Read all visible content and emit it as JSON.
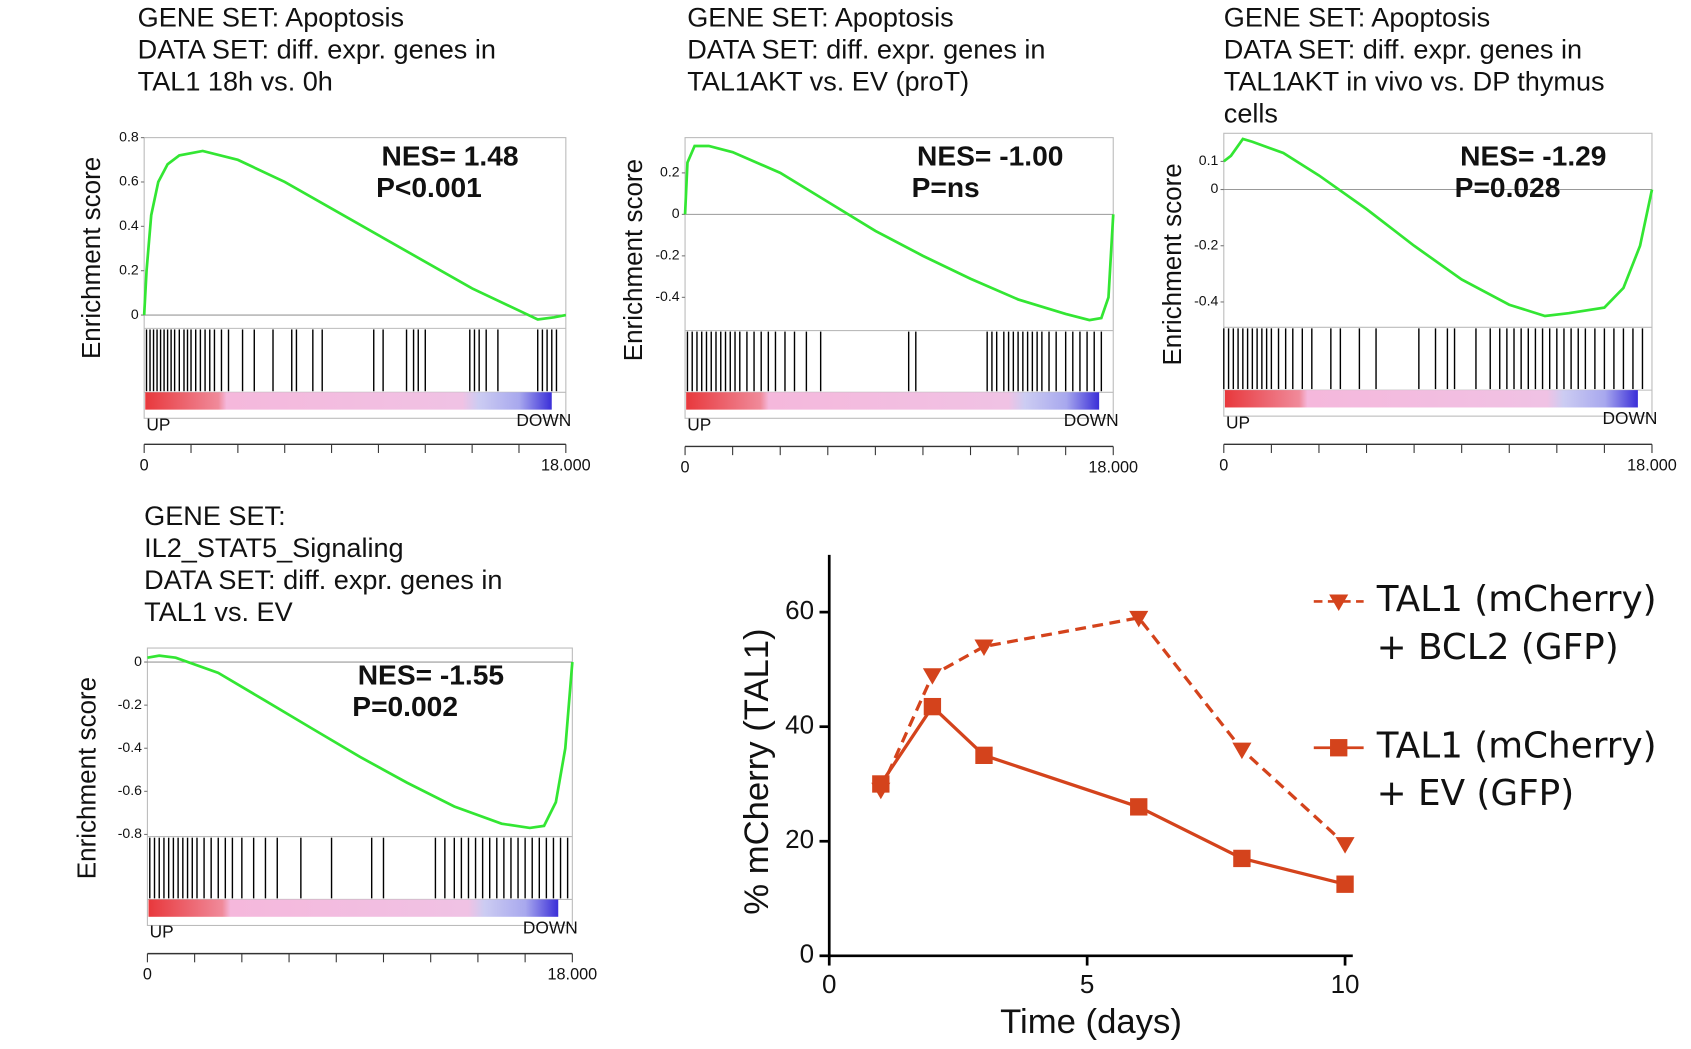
{
  "chart_data": [
    {
      "type": "gsea",
      "title": [
        "GENE SET: Apoptosis",
        "DATA SET: diff. expr. genes in",
        "TAL1 18h vs. 0h"
      ],
      "ylabel": "Enrichment score",
      "annotations": [
        "NES= 1.48",
        "P<0.001"
      ],
      "start_label": "UP",
      "end_label": "DOWN",
      "ylim": [
        -0.06,
        0.8
      ],
      "yticks": [
        0,
        0.2,
        0.4,
        0.6,
        0.8
      ],
      "xlim": [
        0,
        18000
      ],
      "xticks": [
        0,
        {
          "value": 18000,
          "label": "18.000"
        }
      ],
      "xminor_ticks": [
        2000,
        4000,
        6000,
        8000,
        10000,
        12000,
        14000,
        16000
      ],
      "color": "#33e633",
      "x": [
        0,
        100,
        300,
        600,
        1000,
        1500,
        2500,
        4000,
        6000,
        8000,
        10000,
        12000,
        14000,
        16000,
        16800,
        17500,
        18000
      ],
      "values": [
        0,
        0.2,
        0.45,
        0.6,
        0.68,
        0.72,
        0.74,
        0.7,
        0.6,
        0.48,
        0.36,
        0.24,
        0.12,
        0.02,
        -0.02,
        -0.01,
        0
      ],
      "hits": [
        100,
        250,
        400,
        550,
        700,
        850,
        1000,
        1150,
        1300,
        1500,
        1700,
        1850,
        2000,
        2200,
        2400,
        2600,
        2800,
        3000,
        3300,
        3600,
        4200,
        4700,
        5500,
        6300,
        6500,
        7200,
        7600,
        9800,
        10200,
        11200,
        11500,
        11700,
        12000,
        13900,
        14100,
        14300,
        14600,
        15100,
        16800,
        17000,
        17200,
        17400,
        17600
      ]
    },
    {
      "type": "gsea",
      "title": [
        "GENE SET: Apoptosis",
        "DATA SET: diff. expr. genes in",
        "TAL1AKT vs. EV (proT)"
      ],
      "ylabel": "Enrichment score",
      "annotations": [
        "NES= -1.00",
        "P=ns"
      ],
      "start_label": "UP",
      "end_label": "DOWN",
      "ylim": [
        -0.56,
        0.37
      ],
      "yticks": [
        0.2,
        0,
        -0.2,
        -0.4
      ],
      "xlim": [
        0,
        18000
      ],
      "xticks": [
        0,
        {
          "value": 18000,
          "label": "18.000"
        }
      ],
      "xminor_ticks": [
        2000,
        4000,
        6000,
        8000,
        10000,
        12000,
        14000,
        16000
      ],
      "color": "#33e633",
      "x": [
        0,
        100,
        400,
        1000,
        2000,
        4000,
        6000,
        8000,
        10000,
        12000,
        14000,
        16000,
        17000,
        17500,
        17800,
        18000
      ],
      "values": [
        0,
        0.25,
        0.33,
        0.33,
        0.3,
        0.2,
        0.06,
        -0.08,
        -0.2,
        -0.31,
        -0.41,
        -0.48,
        -0.51,
        -0.5,
        -0.4,
        0
      ],
      "hits": [
        100,
        300,
        500,
        700,
        900,
        1100,
        1300,
        1500,
        1700,
        1900,
        2100,
        2300,
        2600,
        2900,
        3200,
        3500,
        3800,
        4200,
        4600,
        5100,
        5700,
        9400,
        9700,
        12700,
        12900,
        13100,
        13400,
        13600,
        13800,
        14000,
        14200,
        14400,
        14600,
        14800,
        15000,
        15300,
        15600,
        16000,
        16300,
        16600,
        16900,
        17200,
        17500
      ]
    },
    {
      "type": "gsea",
      "title": [
        "GENE SET: Apoptosis",
        "DATA SET: diff. expr. genes in",
        "TAL1AKT  in vivo vs. DP thymus",
        "cells"
      ],
      "ylabel": "Enrichment score",
      "annotations": [
        "NES= -1.29",
        "P=0.028"
      ],
      "start_label": "UP",
      "end_label": "DOWN",
      "ylim": [
        -0.49,
        0.2
      ],
      "yticks": [
        0.1,
        0,
        -0.2,
        -0.4
      ],
      "xlim": [
        0,
        18000
      ],
      "xticks": [
        0,
        {
          "value": 18000,
          "label": "18.000"
        }
      ],
      "xminor_ticks": [
        2000,
        4000,
        6000,
        8000,
        10000,
        12000,
        14000,
        16000
      ],
      "color": "#33e633",
      "x": [
        0,
        300,
        800,
        1200,
        2500,
        4000,
        6000,
        8000,
        10000,
        12000,
        13500,
        14500,
        16000,
        16800,
        17500,
        18000
      ],
      "values": [
        0.1,
        0.12,
        0.18,
        0.17,
        0.13,
        0.05,
        -0.07,
        -0.2,
        -0.32,
        -0.41,
        -0.45,
        -0.44,
        -0.42,
        -0.35,
        -0.2,
        0
      ],
      "hits": [
        0,
        200,
        400,
        600,
        800,
        1000,
        1200,
        1400,
        1600,
        1800,
        2000,
        2300,
        2600,
        2900,
        3300,
        3700,
        4500,
        4900,
        5700,
        6400,
        8200,
        8900,
        9400,
        9700,
        10600,
        11200,
        11600,
        11900,
        12200,
        12500,
        12800,
        13100,
        13400,
        13700,
        14000,
        14300,
        14600,
        14900,
        15200,
        15600,
        16000,
        16400,
        16800,
        17200,
        17600
      ]
    },
    {
      "type": "gsea",
      "title": [
        "GENE SET:",
        "IL2_STAT5_Signaling",
        "DATA SET: diff. expr. genes in",
        "TAL1 vs. EV"
      ],
      "ylabel": "Enrichment score",
      "annotations": [
        "NES= -1.55",
        "P=0.002"
      ],
      "start_label": "UP",
      "end_label": "DOWN",
      "ylim": [
        -0.81,
        0.065
      ],
      "yticks": [
        0,
        -0.2,
        -0.4,
        -0.6,
        -0.8
      ],
      "xlim": [
        0,
        18000
      ],
      "xticks": [
        0,
        {
          "value": 18000,
          "label": "18.000"
        }
      ],
      "xminor_ticks": [
        2000,
        4000,
        6000,
        8000,
        10000,
        12000,
        14000,
        16000
      ],
      "color": "#33e633",
      "x": [
        0,
        500,
        1200,
        3000,
        5000,
        7000,
        9000,
        11000,
        13000,
        15000,
        16200,
        16800,
        17300,
        17700,
        18000
      ],
      "values": [
        0.02,
        0.03,
        0.02,
        -0.05,
        -0.18,
        -0.31,
        -0.44,
        -0.56,
        -0.67,
        -0.75,
        -0.77,
        -0.76,
        -0.65,
        -0.4,
        0
      ],
      "hits": [
        100,
        300,
        500,
        700,
        900,
        1100,
        1300,
        1500,
        1700,
        1900,
        2100,
        2400,
        2700,
        3000,
        3300,
        3600,
        4000,
        4500,
        5000,
        5500,
        6500,
        7800,
        9500,
        10000,
        12200,
        12600,
        13000,
        13300,
        13600,
        13900,
        14200,
        14500,
        14800,
        15100,
        15400,
        15700,
        16000,
        16300,
        16600,
        16900,
        17200,
        17500,
        17800
      ]
    },
    {
      "type": "line",
      "xlabel": "Time (days)",
      "ylabel": "% mCherry  (TAL1)",
      "xlim": [
        0,
        10.15
      ],
      "xticks": [
        0,
        5,
        10
      ],
      "ylim": [
        0,
        70
      ],
      "yticks": [
        0,
        20,
        40,
        60
      ],
      "x": [
        1,
        2,
        3,
        6,
        8,
        10
      ],
      "series": [
        {
          "name": "TAL1 (mCherry)\n+ BCL2 (GFP)",
          "color": "#d4431c",
          "marker": "triangle-down",
          "dash": true,
          "values": [
            29,
            49,
            54,
            59,
            36,
            19.5
          ]
        },
        {
          "name": "TAL1 (mCherry)\n+ EV (GFP)",
          "color": "#d4431c",
          "marker": "square",
          "dash": false,
          "values": [
            30,
            43.5,
            35,
            26,
            17,
            12.5
          ]
        }
      ]
    }
  ]
}
